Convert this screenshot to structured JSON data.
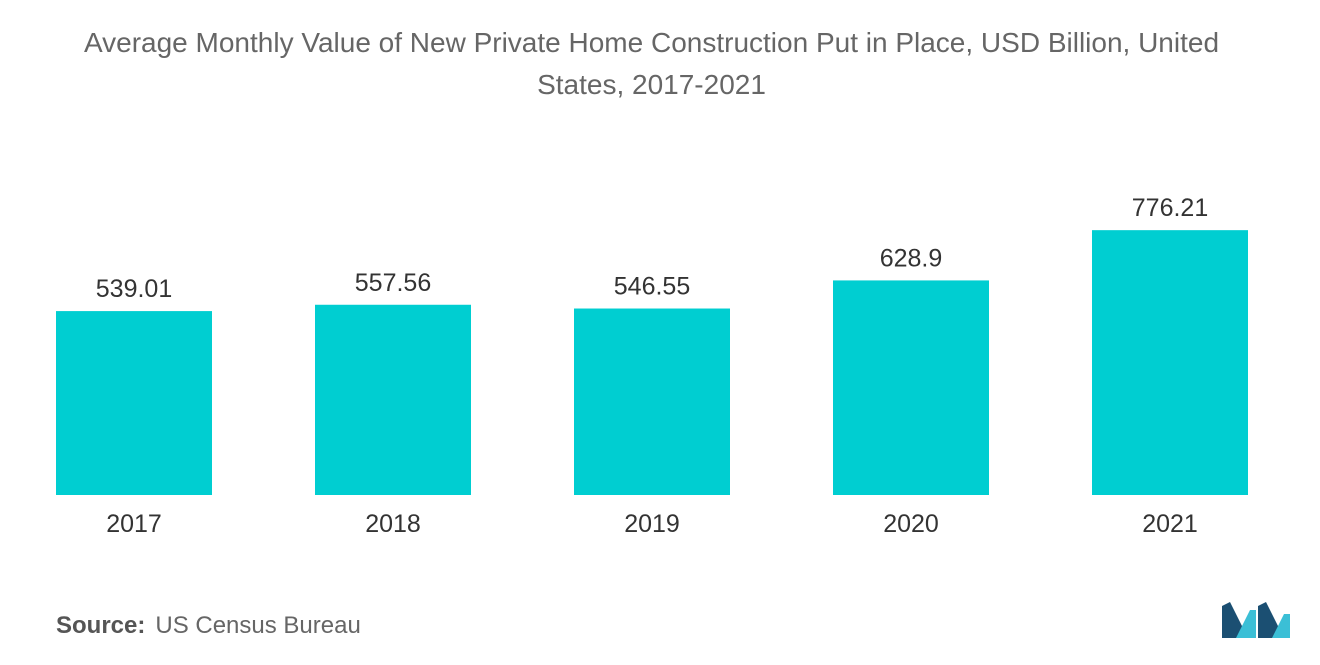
{
  "title_line1": "Average Monthly Value of New Private Home Construction Put in Place, USD Billion, United",
  "title_line2": "States, 2017-2021",
  "footer": {
    "source_label": "Source:",
    "source_value": "US Census Bureau"
  },
  "colors": {
    "bar": "#00CED1",
    "text": "#333333",
    "title": "#666666",
    "logo_dark": "#1B4F72",
    "logo_light": "#3BBFD6"
  },
  "logo_icon": "mordor-intelligence-logo",
  "chart_data": {
    "type": "bar",
    "title": "Average Monthly Value of New Private Home Construction Put in Place, USD Billion, United States, 2017-2021",
    "xlabel": "",
    "ylabel": "",
    "categories": [
      "2017",
      "2018",
      "2019",
      "2020",
      "2021"
    ],
    "values": [
      539.01,
      557.56,
      546.55,
      628.9,
      776.21
    ],
    "value_labels": [
      "539.01",
      "557.56",
      "546.55",
      "628.9",
      "776.21"
    ],
    "ylim": [
      0,
      800
    ],
    "grid": false,
    "legend": "none"
  }
}
